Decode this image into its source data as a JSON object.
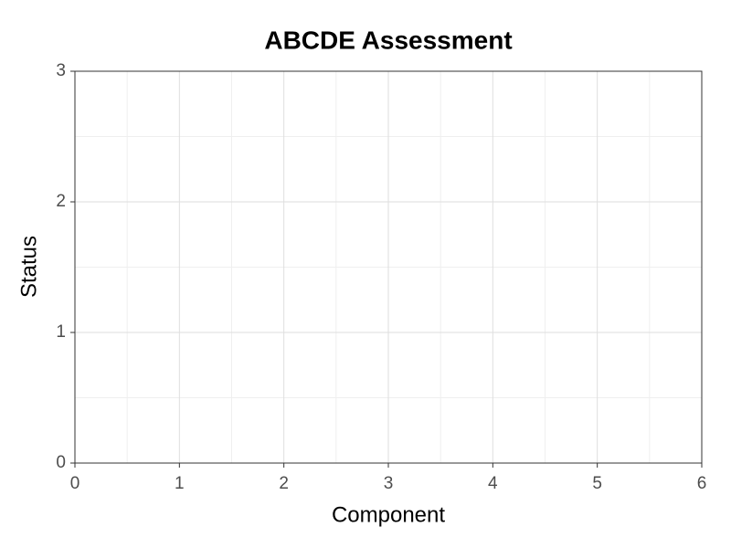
{
  "chart_data": {
    "type": "scatter",
    "title": "ABCDE Assessment",
    "x_label": "Component",
    "y_label": "Status",
    "xlim": [
      0,
      6
    ],
    "xticks": [
      0,
      1,
      2,
      3,
      4,
      5,
      6
    ],
    "ylim": [
      0,
      3
    ],
    "yticks": [
      0,
      1,
      2,
      3
    ],
    "grid": true
  }
}
